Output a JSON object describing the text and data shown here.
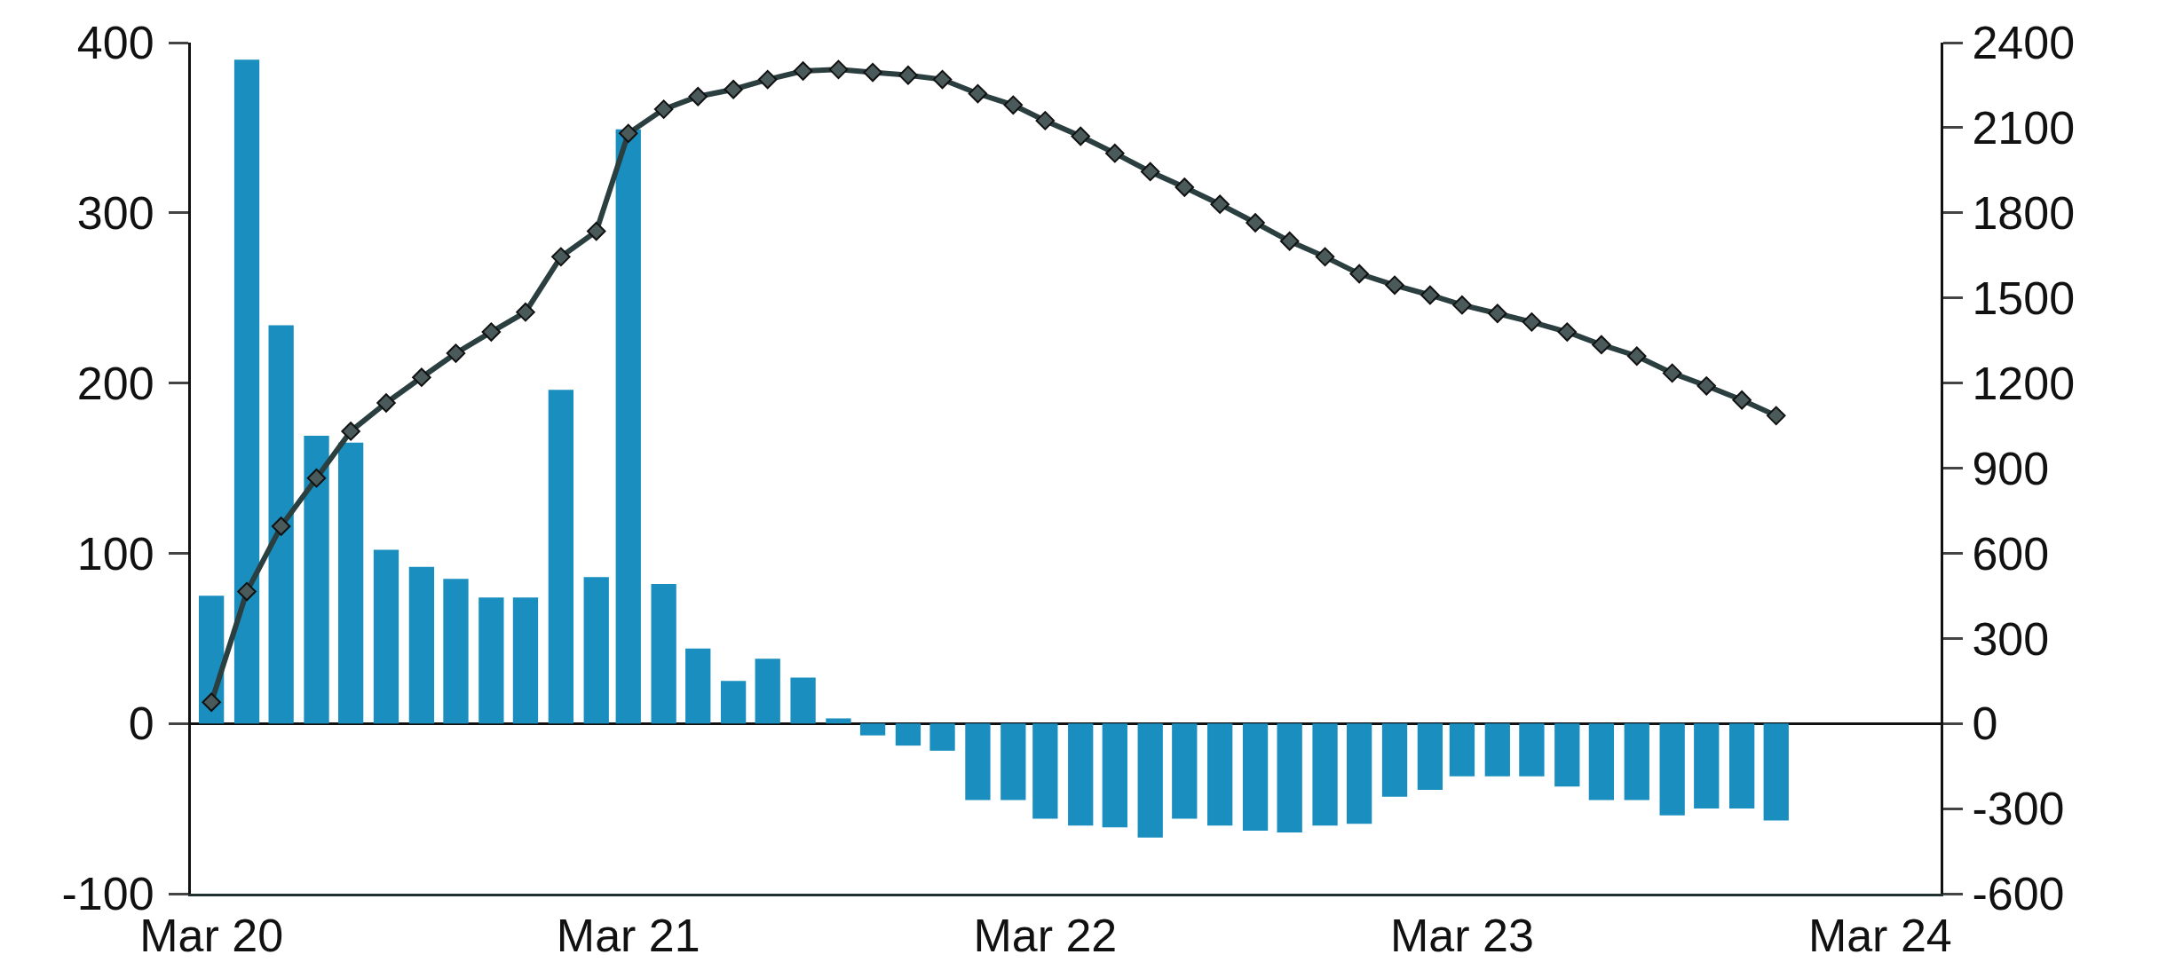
{
  "chart_data": {
    "type": "bar",
    "x": [
      "2020-03",
      "2020-04",
      "2020-05",
      "2020-06",
      "2020-07",
      "2020-08",
      "2020-09",
      "2020-10",
      "2020-11",
      "2020-12",
      "2021-01",
      "2021-02",
      "2021-03",
      "2021-04",
      "2021-05",
      "2021-06",
      "2021-07",
      "2021-08",
      "2021-09",
      "2021-10",
      "2021-11",
      "2021-12",
      "2022-01",
      "2022-02",
      "2022-03",
      "2022-04",
      "2022-05",
      "2022-06",
      "2022-07",
      "2022-08",
      "2022-09",
      "2022-10",
      "2022-11",
      "2022-12",
      "2023-01",
      "2023-02",
      "2023-03",
      "2023-04",
      "2023-05",
      "2023-06",
      "2023-07",
      "2023-08",
      "2023-09",
      "2023-10",
      "2023-11",
      "2023-12"
    ],
    "series": [
      {
        "color": "#1a8fbf",
        "values": [
          75,
          390,
          234,
          169,
          165,
          102,
          92,
          85,
          74,
          74,
          196,
          86,
          349,
          82,
          44,
          25,
          38,
          27,
          3,
          -7,
          -13,
          -16,
          -45,
          -45,
          -56,
          -60,
          -61,
          -67,
          -56,
          -60,
          -63,
          -64,
          -60,
          -59,
          -43,
          -39,
          -31,
          -31,
          -31,
          -37,
          -45,
          -45,
          -54,
          -50,
          -50,
          -57
        ]
      },
      {
        "type": "line",
        "axis": "y2",
        "color": "#2b3f40",
        "marker": "diamond",
        "line_style": "solid",
        "values": [
          75,
          465,
          695,
          865,
          1030,
          1130,
          1220,
          1305,
          1380,
          1450,
          1645,
          1735,
          2080,
          2165,
          2210,
          2235,
          2270,
          2300,
          2305,
          2295,
          2285,
          2270,
          2220,
          2180,
          2125,
          2070,
          2010,
          1945,
          1890,
          1830,
          1765,
          1700,
          1645,
          1585,
          1545,
          1510,
          1475,
          1445,
          1415,
          1380,
          1335,
          1295,
          1235,
          1190,
          1140,
          1085
        ]
      }
    ],
    "xlim": [
      "2020-02-12",
      "2024-04-23"
    ],
    "xticks": [
      {
        "value": "2020-03",
        "label": "Mar 20"
      },
      {
        "value": "2021-03",
        "label": "Mar 21"
      },
      {
        "value": "2022-03",
        "label": "Mar 22"
      },
      {
        "value": "2023-03",
        "label": "Mar 23"
      },
      {
        "value": "2024-03",
        "label": "Mar 24"
      }
    ],
    "ylim": [
      -100,
      400
    ],
    "yticks": [
      -100,
      0,
      100,
      200,
      300,
      400
    ],
    "y2lim": [
      -600,
      2400
    ],
    "y2ticks": [
      -600,
      -300,
      0,
      300,
      600,
      900,
      1200,
      1500,
      1800,
      2100,
      2400
    ],
    "legend": false
  }
}
